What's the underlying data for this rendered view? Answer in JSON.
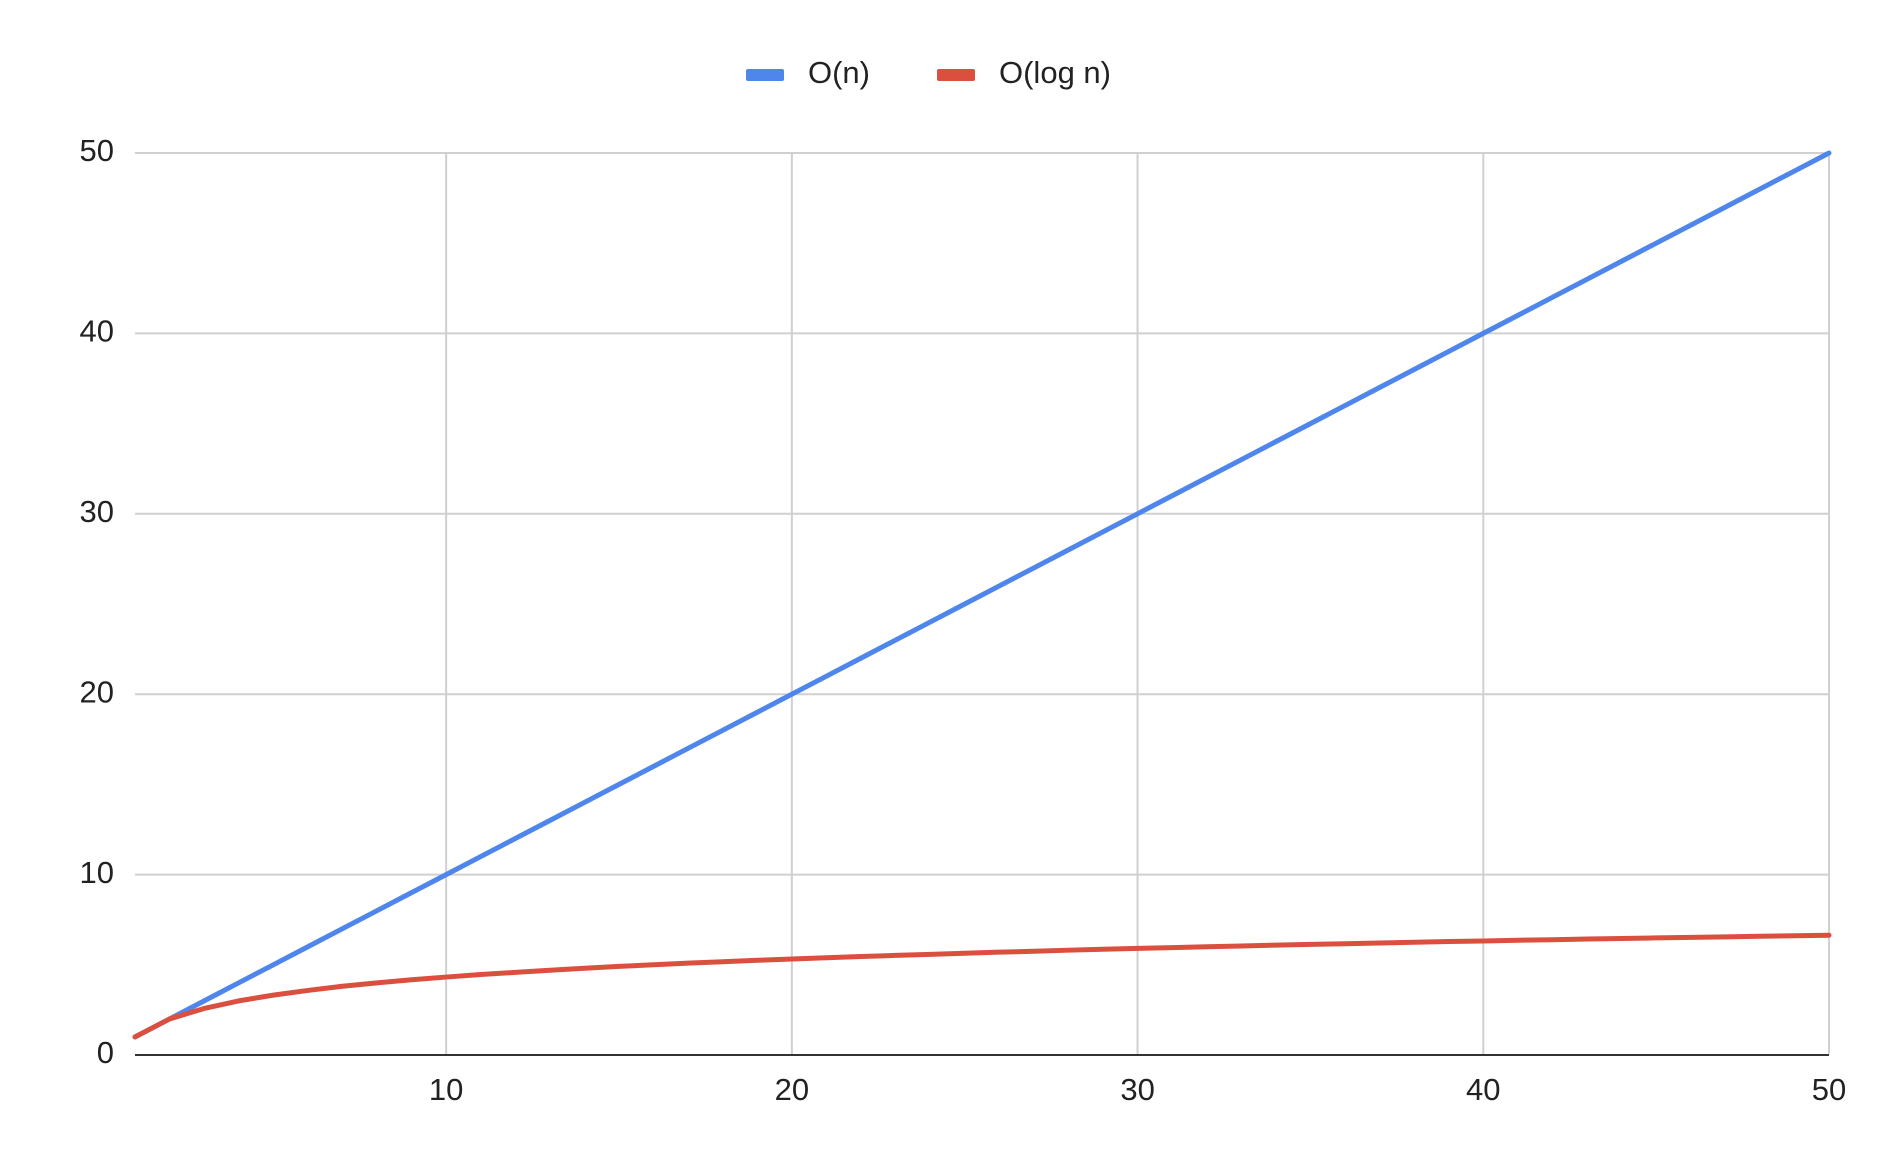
{
  "chart_data": {
    "type": "line",
    "x": [
      1,
      2,
      3,
      4,
      5,
      6,
      7,
      8,
      9,
      10,
      11,
      12,
      13,
      14,
      15,
      16,
      17,
      18,
      19,
      20,
      21,
      22,
      23,
      24,
      25,
      26,
      27,
      28,
      29,
      30,
      31,
      32,
      33,
      34,
      35,
      36,
      37,
      38,
      39,
      40,
      41,
      42,
      43,
      44,
      45,
      46,
      47,
      48,
      49,
      50
    ],
    "series": [
      {
        "name": "O(n)",
        "color": "#4f86ec",
        "values": [
          1,
          2,
          3,
          4,
          5,
          6,
          7,
          8,
          9,
          10,
          11,
          12,
          13,
          14,
          15,
          16,
          17,
          18,
          19,
          20,
          21,
          22,
          23,
          24,
          25,
          26,
          27,
          28,
          29,
          30,
          31,
          32,
          33,
          34,
          35,
          36,
          37,
          38,
          39,
          40,
          41,
          42,
          43,
          44,
          45,
          46,
          47,
          48,
          49,
          50
        ]
      },
      {
        "name": "O(log n)",
        "color": "#db4f3f",
        "values": [
          1,
          2,
          2.58,
          3,
          3.32,
          3.58,
          3.81,
          4,
          4.17,
          4.32,
          4.46,
          4.58,
          4.7,
          4.81,
          4.91,
          5,
          5.09,
          5.17,
          5.25,
          5.32,
          5.39,
          5.46,
          5.52,
          5.58,
          5.64,
          5.7,
          5.75,
          5.81,
          5.86,
          5.91,
          5.95,
          6,
          6.04,
          6.09,
          6.13,
          6.17,
          6.21,
          6.25,
          6.29,
          6.32,
          6.36,
          6.39,
          6.43,
          6.46,
          6.49,
          6.52,
          6.55,
          6.58,
          6.61,
          6.64
        ]
      }
    ],
    "xlim": [
      1,
      50
    ],
    "xticks": [
      10,
      20,
      30,
      40,
      50
    ],
    "ylim": [
      0,
      50
    ],
    "yticks": [
      0,
      10,
      20,
      30,
      40,
      50
    ],
    "grid": true,
    "legend": "top"
  }
}
